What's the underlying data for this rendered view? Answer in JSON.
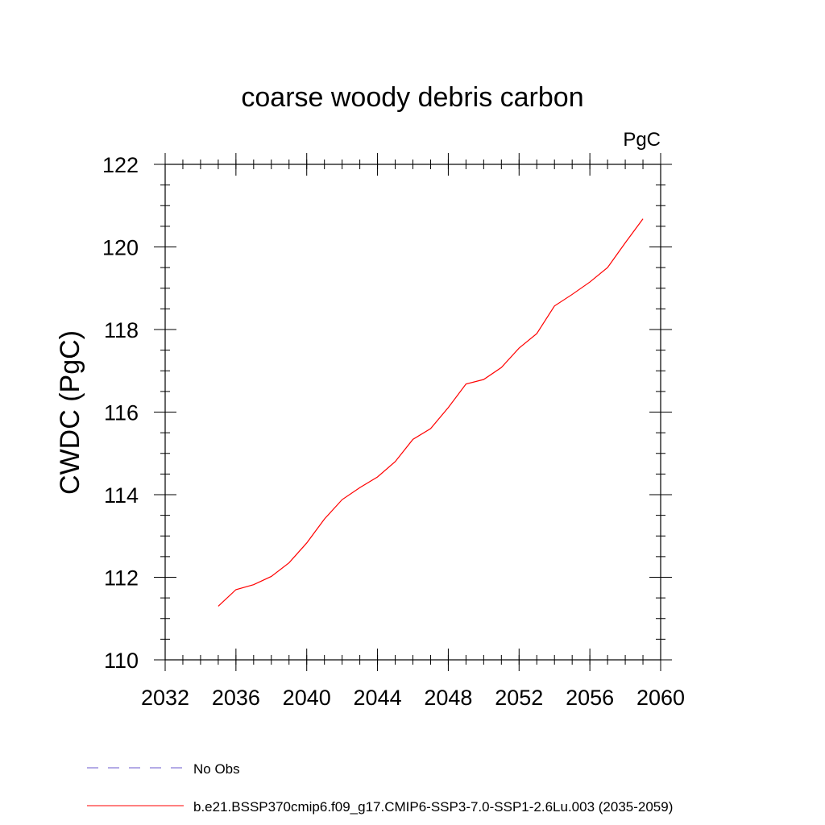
{
  "chart_data": {
    "type": "line",
    "title": "coarse woody debris carbon",
    "units_label": "PgC",
    "ylabel": "CWDC  (PgC)",
    "xlabel": "",
    "xlim": [
      2032,
      2060
    ],
    "ylim": [
      110,
      122
    ],
    "x_ticks": [
      2032,
      2036,
      2040,
      2044,
      2048,
      2052,
      2056,
      2060
    ],
    "y_ticks": [
      110,
      112,
      114,
      116,
      118,
      120,
      122
    ],
    "x_minor_step": 1,
    "y_minor_step": 0.5,
    "grid": false,
    "legend_position": "bottom-left",
    "series": [
      {
        "name": "No Obs",
        "style": "dashed",
        "color": "#6a5acd",
        "x": [],
        "y": []
      },
      {
        "name": "b.e21.BSSP370cmip6.f09_g17.CMIP6-SSP3-7.0-SSP1-2.6Lu.003 (2035-2059)",
        "style": "solid",
        "color": "#ff0000",
        "x": [
          2035,
          2036,
          2037,
          2038,
          2039,
          2040,
          2041,
          2042,
          2043,
          2044,
          2045,
          2046,
          2047,
          2048,
          2049,
          2050,
          2051,
          2052,
          2053,
          2054,
          2055,
          2056,
          2057,
          2058,
          2059
        ],
        "y": [
          111.3,
          111.7,
          111.82,
          112.02,
          112.35,
          112.83,
          113.41,
          113.88,
          114.17,
          114.43,
          114.8,
          115.34,
          115.6,
          116.11,
          116.68,
          116.79,
          117.08,
          117.55,
          117.9,
          118.57,
          118.85,
          119.15,
          119.5,
          120.1,
          120.68
        ]
      }
    ]
  }
}
